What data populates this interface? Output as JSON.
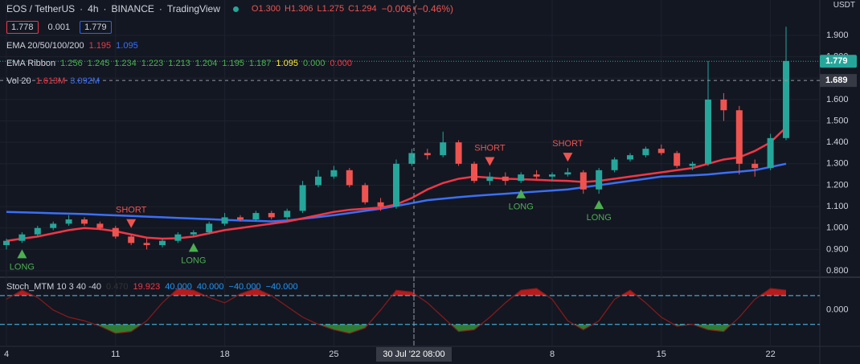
{
  "chart_data": {
    "type": "candlestick",
    "header": {
      "symbol": "EOS / TetherUS",
      "interval": "4h",
      "exchange": "BINANCE",
      "source": "TradingView",
      "ohlc": [
        "O1.300",
        "H1.306",
        "L1.275",
        "C1.294"
      ],
      "change": "−0.006 (−0.46%)"
    },
    "order_boxes": [
      {
        "text": "1.778",
        "color": "#f23645"
      },
      {
        "text": "0.001",
        "color": null
      },
      {
        "text": "1.779",
        "color": "#2962ff"
      }
    ],
    "indicators": [
      {
        "name": "EMA 20/50/100/200",
        "values": [
          {
            "text": "1.195",
            "color": "#f23645"
          },
          {
            "text": "1.095",
            "color": "#3a6ff7"
          }
        ]
      },
      {
        "name": "EMA Ribbon",
        "values": [
          {
            "text": "1.256",
            "color": "#4caf50"
          },
          {
            "text": "1.245",
            "color": "#4caf50"
          },
          {
            "text": "1.234",
            "color": "#4caf50"
          },
          {
            "text": "1.223",
            "color": "#4caf50"
          },
          {
            "text": "1.213",
            "color": "#4caf50"
          },
          {
            "text": "1.204",
            "color": "#4caf50"
          },
          {
            "text": "1.195",
            "color": "#4caf50"
          },
          {
            "text": "1.187",
            "color": "#4caf50"
          },
          {
            "text": "1.095",
            "color": "#ffeb3b"
          },
          {
            "text": "0.000",
            "color": "#4caf50"
          },
          {
            "text": "0.000",
            "color": "#f23645"
          }
        ]
      },
      {
        "name": "Vol 20",
        "values": [
          {
            "text": "1.613M",
            "color": "#f23645"
          },
          {
            "text": "3.092M",
            "color": "#3a6ff7"
          }
        ]
      }
    ],
    "stoch_legend": {
      "name": "Stoch_MTM 10 3 40 -40",
      "values": [
        {
          "text": "0.470",
          "color": "#333"
        },
        {
          "text": "19.923",
          "color": "#f23645"
        },
        {
          "text": "40.000",
          "color": "#2196f3"
        },
        {
          "text": "40.000",
          "color": "#2196f3"
        },
        {
          "text": "−40.000",
          "color": "#2196f3"
        },
        {
          "text": "−40.000",
          "color": "#2196f3"
        }
      ]
    },
    "currency": "USDT",
    "categories": [
      "4",
      null,
      null,
      null,
      null,
      null,
      null,
      "11",
      null,
      null,
      null,
      null,
      null,
      null,
      "18",
      null,
      null,
      null,
      null,
      null,
      null,
      "25",
      null,
      null,
      null,
      null,
      null,
      null,
      null,
      null,
      null,
      null,
      null,
      null,
      null,
      "8",
      null,
      null,
      null,
      null,
      null,
      null,
      "15",
      null,
      null,
      null,
      null,
      null,
      null,
      "22",
      null
    ],
    "open": [
      0.92,
      0.94,
      0.97,
      1.0,
      1.02,
      1.04,
      1.02,
      1.0,
      0.96,
      0.93,
      0.92,
      0.94,
      0.97,
      0.98,
      1.02,
      1.05,
      1.04,
      1.07,
      1.05,
      1.08,
      1.2,
      1.24,
      1.27,
      1.2,
      1.12,
      1.1,
      1.3,
      1.35,
      1.34,
      1.4,
      1.3,
      1.22,
      1.24,
      1.22,
      1.25,
      1.24,
      1.25,
      1.26,
      1.18,
      1.27,
      1.32,
      1.34,
      1.37,
      1.35,
      1.29,
      1.3,
      1.6,
      1.55,
      1.3,
      1.28,
      1.42
    ],
    "high": [
      0.95,
      0.98,
      1.01,
      1.03,
      1.06,
      1.05,
      1.03,
      1.01,
      0.97,
      0.95,
      0.95,
      0.98,
      0.99,
      1.03,
      1.07,
      1.06,
      1.08,
      1.08,
      1.09,
      1.22,
      1.27,
      1.29,
      1.28,
      1.21,
      1.14,
      1.32,
      1.37,
      1.37,
      1.45,
      1.41,
      1.31,
      1.26,
      1.26,
      1.26,
      1.27,
      1.26,
      1.28,
      1.27,
      1.28,
      1.33,
      1.35,
      1.38,
      1.39,
      1.36,
      1.31,
      1.78,
      1.63,
      1.57,
      1.32,
      1.44,
      1.94
    ],
    "low": [
      0.9,
      0.93,
      0.96,
      0.99,
      1.01,
      1.01,
      0.99,
      0.95,
      0.92,
      0.9,
      0.91,
      0.93,
      0.96,
      0.97,
      1.01,
      1.03,
      1.03,
      1.04,
      1.04,
      1.07,
      1.19,
      1.23,
      1.19,
      1.11,
      1.08,
      1.09,
      1.29,
      1.32,
      1.33,
      1.29,
      1.21,
      1.2,
      1.2,
      1.21,
      1.23,
      1.22,
      1.24,
      1.16,
      1.16,
      1.26,
      1.31,
      1.33,
      1.34,
      1.28,
      1.27,
      1.29,
      1.5,
      1.25,
      1.24,
      1.27,
      1.41
    ],
    "close": [
      0.94,
      0.97,
      1.0,
      1.02,
      1.04,
      1.02,
      1.0,
      0.96,
      0.93,
      0.92,
      0.94,
      0.97,
      0.98,
      1.02,
      1.05,
      1.04,
      1.07,
      1.05,
      1.08,
      1.2,
      1.24,
      1.27,
      1.2,
      1.12,
      1.1,
      1.3,
      1.35,
      1.34,
      1.4,
      1.3,
      1.22,
      1.24,
      1.22,
      1.25,
      1.24,
      1.25,
      1.26,
      1.18,
      1.27,
      1.32,
      1.34,
      1.37,
      1.35,
      1.29,
      1.3,
      1.6,
      1.55,
      1.3,
      1.28,
      1.42,
      1.78
    ],
    "up_color": "#26a69a",
    "down_color": "#ef5350",
    "series": [
      {
        "color": "#3a6ff7",
        "values": [
          1.075,
          1.073,
          1.071,
          1.069,
          1.067,
          1.065,
          1.062,
          1.059,
          1.056,
          1.053,
          1.05,
          1.047,
          1.044,
          1.041,
          1.038,
          1.035,
          1.033,
          1.031,
          1.035,
          1.043,
          1.051,
          1.06,
          1.07,
          1.08,
          1.09,
          1.103,
          1.116,
          1.13,
          1.137,
          1.144,
          1.15,
          1.155,
          1.16,
          1.165,
          1.17,
          1.175,
          1.18,
          1.19,
          1.2,
          1.21,
          1.22,
          1.23,
          1.24,
          1.243,
          1.246,
          1.25,
          1.257,
          1.263,
          1.27,
          1.285,
          1.3
        ]
      },
      {
        "color": "#f23645",
        "values": [
          0.94,
          0.95,
          0.96,
          0.975,
          0.99,
          1.0,
          0.995,
          0.985,
          0.97,
          0.955,
          0.95,
          0.952,
          0.96,
          0.975,
          0.99,
          1.0,
          1.01,
          1.02,
          1.03,
          1.045,
          1.06,
          1.075,
          1.085,
          1.09,
          1.095,
          1.11,
          1.14,
          1.18,
          1.21,
          1.23,
          1.24,
          1.235,
          1.23,
          1.228,
          1.225,
          1.222,
          1.22,
          1.215,
          1.22,
          1.23,
          1.24,
          1.25,
          1.26,
          1.27,
          1.28,
          1.3,
          1.32,
          1.33,
          1.36,
          1.4,
          1.47
        ]
      }
    ],
    "signals": [
      {
        "text": "LONG",
        "at": 1
      },
      {
        "text": "SHORT",
        "at": 8
      },
      {
        "text": "LONG",
        "at": 12
      },
      {
        "text": "SHORT",
        "at": 31
      },
      {
        "text": "LONG",
        "at": 33
      },
      {
        "text": "SHORT",
        "at": 36
      },
      {
        "text": "LONG",
        "at": 38
      }
    ],
    "ylim": [
      0.77,
      2.065
    ],
    "yticks": [
      {
        "value": 0.8,
        "label": "0.800"
      },
      {
        "value": 0.9,
        "label": "0.900"
      },
      {
        "value": 1.0,
        "label": "1.000"
      },
      {
        "value": 1.1,
        "label": "1.100"
      },
      {
        "value": 1.2,
        "label": "1.200"
      },
      {
        "value": 1.3,
        "label": "1.300"
      },
      {
        "value": 1.4,
        "label": "1.400"
      },
      {
        "value": 1.5,
        "label": "1.500"
      },
      {
        "value": 1.6,
        "label": "1.600"
      },
      {
        "value": 1.7,
        "label": "1.700"
      },
      {
        "value": 1.8,
        "label": "1.800"
      },
      {
        "value": 1.9,
        "label": "1.900"
      }
    ],
    "last_price": {
      "value": 1.779,
      "label": "1.779"
    },
    "crosshair": {
      "price": 1.689,
      "price_label": "1.689",
      "time_label": "30 Jul '22   08:00"
    },
    "stoch": {
      "values": [
        30,
        55,
        35,
        0,
        -20,
        -30,
        -45,
        -65,
        -60,
        -30,
        20,
        60,
        55,
        35,
        20,
        45,
        60,
        40,
        10,
        -20,
        -40,
        -55,
        -65,
        -50,
        0,
        55,
        50,
        20,
        -20,
        -60,
        -55,
        -20,
        20,
        55,
        60,
        30,
        -30,
        -55,
        -30,
        30,
        55,
        20,
        -20,
        -45,
        -40,
        -55,
        -60,
        -20,
        30,
        60,
        55
      ],
      "ylim": [
        -101,
        89
      ],
      "yticks": [
        {
          "value": 0,
          "label": "0.000"
        }
      ],
      "bands": [
        40,
        -40
      ],
      "color": "#8b1a1a"
    }
  }
}
